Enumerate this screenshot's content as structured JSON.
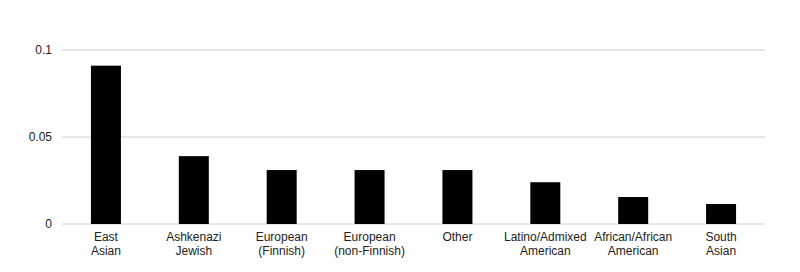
{
  "chart_data": {
    "type": "bar",
    "categories": [
      "East Asian",
      "Ashkenazi Jewish",
      "European (Finnish)",
      "European (non-Finnish)",
      "Other",
      "Latino/Admixed American",
      "African/African American",
      "South Asian"
    ],
    "values": [
      0.091,
      0.039,
      0.031,
      0.031,
      0.031,
      0.024,
      0.0155,
      0.0115
    ],
    "color": "#000000",
    "ylim": [
      0,
      0.1
    ],
    "yticks": [
      0,
      0.05,
      0.1
    ],
    "grid": true
  }
}
